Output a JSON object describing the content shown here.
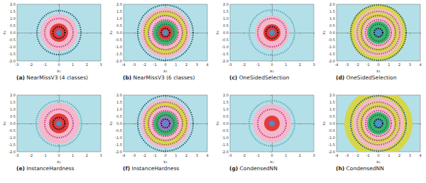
{
  "chart_data": [
    {
      "type": "scatter",
      "caption_tag": "(a)",
      "caption": "NearMissV3 (4 classes)",
      "x_label": "x₁",
      "y_label": "x₂",
      "color": "#b3e0e8",
      "xlim": [
        -3,
        3
      ],
      "xticks": [
        -3,
        -2,
        -1,
        0,
        1,
        2,
        3
      ],
      "ylim": [
        -2,
        2
      ],
      "yticks": [
        {
          "value": -2,
          "label": "-2.0"
        },
        {
          "value": -1.5,
          "label": "-1.5"
        },
        {
          "value": -1,
          "label": "-1.0"
        },
        {
          "value": -0.5,
          "label": "-0.5"
        },
        {
          "value": 0,
          "label": "0.0"
        },
        {
          "value": 0.5,
          "label": "0.5"
        },
        {
          "value": 1,
          "label": "1.0"
        },
        {
          "value": 1.5,
          "label": "1.5"
        },
        {
          "value": 2,
          "label": "2.0"
        }
      ],
      "regions": [
        {
          "radius": 1.3,
          "color": "#f4b8cc"
        },
        {
          "radius": 0.65,
          "color": "#e23b3b"
        },
        {
          "radius": 0.2,
          "color": "#4a8fc8"
        }
      ],
      "rings": [
        {
          "radius": 1.55,
          "color": "#2e5b73"
        },
        {
          "radius": 1.0,
          "color": "#c0407f"
        },
        {
          "radius": 0.42,
          "color": "#111111"
        }
      ]
    },
    {
      "type": "scatter",
      "caption_tag": "(b)",
      "caption": "NearMissV3 (6 classes)",
      "x_label": "x₁",
      "y_label": "x₂",
      "color": "#b3e0e8",
      "xlim": [
        -4,
        4
      ],
      "xticks": [
        -4,
        -3,
        -2,
        -1,
        0,
        1,
        2,
        3,
        4
      ],
      "ylim": [
        -2,
        2
      ],
      "yticks": [
        {
          "value": -2,
          "label": "-2.0"
        },
        {
          "value": -1.5,
          "label": "-1.5"
        },
        {
          "value": -1,
          "label": "-1.0"
        },
        {
          "value": -0.5,
          "label": "-0.5"
        },
        {
          "value": 0,
          "label": "0.0"
        },
        {
          "value": 0.5,
          "label": "0.5"
        },
        {
          "value": 1,
          "label": "1.0"
        },
        {
          "value": 1.5,
          "label": "1.5"
        },
        {
          "value": 2,
          "label": "2.0"
        }
      ],
      "regions": [
        {
          "radius": 1.75,
          "color": "#f4b8cc"
        },
        {
          "radius": 1.45,
          "color": "#d6d64a"
        },
        {
          "radius": 1.15,
          "color": "#f4b8cc"
        },
        {
          "radius": 0.85,
          "color": "#3cb371"
        },
        {
          "radius": 0.5,
          "color": "#e23b3b"
        },
        {
          "radius": 0.2,
          "color": "#4a8fc8"
        }
      ],
      "rings": [
        {
          "radius": 1.95,
          "color": "#2e5b73"
        },
        {
          "radius": 1.5,
          "color": "#8b8b00"
        },
        {
          "radius": 1.2,
          "color": "#a040a0"
        },
        {
          "radius": 0.9,
          "color": "#c0407f"
        },
        {
          "radius": 0.6,
          "color": "#1e6e3a"
        },
        {
          "radius": 0.3,
          "color": "#111111"
        }
      ]
    },
    {
      "type": "scatter",
      "caption_tag": "(c)",
      "caption": "OneSidedSelection",
      "x_label": "x₁",
      "y_label": "x₂",
      "color": "#b3e0e8",
      "xlim": [
        -3,
        3
      ],
      "xticks": [
        -3,
        -2,
        -1,
        0,
        1,
        2,
        3
      ],
      "ylim": [
        -2,
        2
      ],
      "yticks": [
        {
          "value": -2,
          "label": "-2.0"
        },
        {
          "value": -1.5,
          "label": "-1.5"
        },
        {
          "value": -1,
          "label": "-1.0"
        },
        {
          "value": -0.5,
          "label": "-0.5"
        },
        {
          "value": 0,
          "label": "0.0"
        },
        {
          "value": 0.5,
          "label": "0.5"
        },
        {
          "value": 1,
          "label": "1.0"
        },
        {
          "value": 1.5,
          "label": "1.5"
        },
        {
          "value": 2,
          "label": "2.0"
        }
      ],
      "regions": [
        {
          "radius": 1.2,
          "color": "#f4b8cc"
        },
        {
          "radius": 0.6,
          "color": "#e23b3b"
        },
        {
          "radius": 0.2,
          "color": "#4a8fc8"
        }
      ],
      "rings": [
        {
          "radius": 1.6,
          "color": "#5fa8b8"
        },
        {
          "radius": 1.0,
          "color": "#c0407f"
        },
        {
          "radius": 0.42,
          "color": "#111111"
        }
      ]
    },
    {
      "type": "scatter",
      "caption_tag": "(d)",
      "caption": "OneSidedSelection",
      "x_label": "x₁",
      "y_label": "x₂",
      "color": "#b3e0e8",
      "xlim": [
        -4,
        4
      ],
      "xticks": [
        -4,
        -3,
        -2,
        -1,
        0,
        1,
        2,
        3,
        4
      ],
      "ylim": [
        -2,
        2
      ],
      "yticks": [
        {
          "value": -2,
          "label": "-2.0"
        },
        {
          "value": -1.5,
          "label": "-1.5"
        },
        {
          "value": -1,
          "label": "-1.0"
        },
        {
          "value": -0.5,
          "label": "-0.5"
        },
        {
          "value": 0,
          "label": "0.0"
        },
        {
          "value": 0.5,
          "label": "0.5"
        },
        {
          "value": 1,
          "label": "1.0"
        },
        {
          "value": 1.5,
          "label": "1.5"
        },
        {
          "value": 2,
          "label": "2.0"
        }
      ],
      "regions": [
        {
          "radius": 2.0,
          "color": "#d6d64a"
        },
        {
          "radius": 1.7,
          "color": "#f4b8cc"
        },
        {
          "radius": 1.4,
          "color": "#d6d64a"
        },
        {
          "radius": 1.1,
          "color": "#f4b8cc"
        },
        {
          "radius": 0.8,
          "color": "#3cb371"
        },
        {
          "radius": 0.3,
          "color": "#4a8fc8"
        }
      ],
      "rings": [
        {
          "radius": 1.95,
          "color": "#2e5b73"
        },
        {
          "radius": 1.5,
          "color": "#8b8b00"
        },
        {
          "radius": 1.2,
          "color": "#a040a0"
        },
        {
          "radius": 0.9,
          "color": "#c0407f"
        },
        {
          "radius": 0.6,
          "color": "#1e6e3a"
        },
        {
          "radius": 0.3,
          "color": "#111111"
        }
      ]
    },
    {
      "type": "scatter",
      "caption_tag": "(e)",
      "caption": "InstanceHardness",
      "x_label": "x₁",
      "y_label": "x₂",
      "color": "#b3e0e8",
      "xlim": [
        -3,
        3
      ],
      "xticks": [
        -3,
        -2,
        -1,
        0,
        1,
        2,
        3
      ],
      "ylim": [
        -2,
        2
      ],
      "yticks": [
        {
          "value": -2,
          "label": "-2.0"
        },
        {
          "value": -1.5,
          "label": "-1.5"
        },
        {
          "value": -1,
          "label": "-1.0"
        },
        {
          "value": -0.5,
          "label": "-0.5"
        },
        {
          "value": 0,
          "label": "0.0"
        },
        {
          "value": 0.5,
          "label": "0.5"
        },
        {
          "value": 1,
          "label": "1.0"
        },
        {
          "value": 1.5,
          "label": "1.5"
        },
        {
          "value": 2,
          "label": "2.0"
        }
      ],
      "regions": [
        {
          "radius": 1.45,
          "color": "#f4b8cc"
        },
        {
          "radius": 0.7,
          "color": "#e23b3b"
        },
        {
          "radius": 0.2,
          "color": "#4a8fc8"
        }
      ],
      "rings": [
        {
          "radius": 1.6,
          "color": "#5fa8b8"
        },
        {
          "radius": 1.0,
          "color": "#c0407f"
        },
        {
          "radius": 0.42,
          "color": "#111111"
        }
      ]
    },
    {
      "type": "scatter",
      "caption_tag": "(f)",
      "caption": "InstanceHardness",
      "x_label": "x₁",
      "y_label": "x₂",
      "color": "#b3e0e8",
      "xlim": [
        -4,
        4
      ],
      "xticks": [
        -4,
        -3,
        -2,
        -1,
        0,
        1,
        2,
        3,
        4
      ],
      "ylim": [
        -2,
        2
      ],
      "yticks": [
        {
          "value": -2,
          "label": "-2.0"
        },
        {
          "value": -1.5,
          "label": "-1.5"
        },
        {
          "value": -1,
          "label": "-1.0"
        },
        {
          "value": -0.5,
          "label": "-0.5"
        },
        {
          "value": 0,
          "label": "0.0"
        },
        {
          "value": 0.5,
          "label": "0.5"
        },
        {
          "value": 1,
          "label": "1.0"
        },
        {
          "value": 1.5,
          "label": "1.5"
        },
        {
          "value": 2,
          "label": "2.0"
        }
      ],
      "regions": [
        {
          "radius": 1.75,
          "color": "#f4b8cc"
        },
        {
          "radius": 1.45,
          "color": "#d6d64a"
        },
        {
          "radius": 1.15,
          "color": "#f4b8cc"
        },
        {
          "radius": 0.85,
          "color": "#3cb371"
        },
        {
          "radius": 0.5,
          "color": "#a070c8"
        },
        {
          "radius": 0.2,
          "color": "#4a8fc8"
        }
      ],
      "rings": [
        {
          "radius": 1.95,
          "color": "#2e5b73"
        },
        {
          "radius": 1.5,
          "color": "#8b8b00"
        },
        {
          "radius": 1.2,
          "color": "#a040a0"
        },
        {
          "radius": 0.9,
          "color": "#c0407f"
        },
        {
          "radius": 0.6,
          "color": "#1e6e3a"
        },
        {
          "radius": 0.3,
          "color": "#111111"
        }
      ]
    },
    {
      "type": "scatter",
      "caption_tag": "(g)",
      "caption": "CondensedNN",
      "x_label": "x₁",
      "y_label": "x₂",
      "color": "#b3e0e8",
      "xlim": [
        -3,
        3
      ],
      "xticks": [
        -3,
        -2,
        -1,
        0,
        1,
        2,
        3
      ],
      "ylim": [
        -2,
        2
      ],
      "yticks": [
        {
          "value": -2,
          "label": "-2.0"
        },
        {
          "value": -1.5,
          "label": "-1.5"
        },
        {
          "value": -1,
          "label": "-1.0"
        },
        {
          "value": -0.5,
          "label": "-0.5"
        },
        {
          "value": 0,
          "label": "0.0"
        },
        {
          "value": 0.5,
          "label": "0.5"
        },
        {
          "value": 1,
          "label": "1.0"
        },
        {
          "value": 1.5,
          "label": "1.5"
        },
        {
          "value": 2,
          "label": "2.0"
        }
      ],
      "regions": [
        {
          "radius": 1.35,
          "color": "#f4b8cc"
        },
        {
          "radius": 0.55,
          "color": "#e23b3b"
        },
        {
          "radius": 0.2,
          "color": "#4a8fc8"
        }
      ],
      "rings": [
        {
          "radius": 1.6,
          "color": "#5fa8b8"
        },
        {
          "radius": 1.0,
          "color": "#c0407f"
        }
      ]
    },
    {
      "type": "scatter",
      "caption_tag": "(h)",
      "caption": "CondensedNN",
      "x_label": "x₁",
      "y_label": "x₂",
      "color": "#b3e0e8",
      "xlim": [
        -4,
        4
      ],
      "xticks": [
        -4,
        -3,
        -2,
        -1,
        0,
        1,
        2,
        3,
        4
      ],
      "ylim": [
        -2,
        2
      ],
      "yticks": [
        {
          "value": -2,
          "label": "-2.0"
        },
        {
          "value": -1.5,
          "label": "-1.5"
        },
        {
          "value": -1,
          "label": "-1.0"
        },
        {
          "value": -0.5,
          "label": "-0.5"
        },
        {
          "value": 0,
          "label": "0.0"
        },
        {
          "value": 0.5,
          "label": "0.5"
        },
        {
          "value": 1,
          "label": "1.0"
        },
        {
          "value": 1.5,
          "label": "1.5"
        },
        {
          "value": 2,
          "label": "2.0"
        }
      ],
      "regions": [
        {
          "radius": 2.4,
          "color": "#d6d64a"
        },
        {
          "radius": 1.8,
          "color": "#f4b8cc"
        },
        {
          "radius": 1.4,
          "color": "#d6d64a"
        },
        {
          "radius": 1.1,
          "color": "#f4b8cc"
        },
        {
          "radius": 0.8,
          "color": "#3cb371"
        },
        {
          "radius": 0.3,
          "color": "#4a8fc8"
        }
      ],
      "rings": [
        {
          "radius": 1.95,
          "color": "#2e5b73"
        },
        {
          "radius": 1.5,
          "color": "#8b8b00"
        },
        {
          "radius": 1.2,
          "color": "#a040a0"
        },
        {
          "radius": 0.9,
          "color": "#c0407f"
        },
        {
          "radius": 0.6,
          "color": "#1e6e3a"
        },
        {
          "radius": 0.3,
          "color": "#111111"
        }
      ]
    }
  ]
}
